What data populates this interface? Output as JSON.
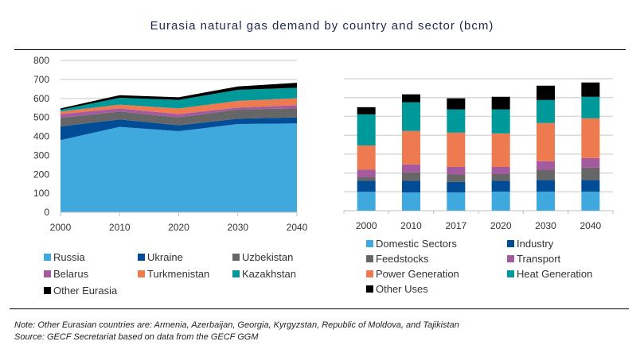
{
  "title": "Eurasia natural gas demand by country and sector (bcm)",
  "chart_data": [
    {
      "type": "area",
      "stacked": true,
      "x": [
        2000,
        2010,
        2020,
        2030,
        2040
      ],
      "xtick_labels": [
        "2000",
        "2010",
        "2020",
        "2030",
        "2040"
      ],
      "yticks": [
        0,
        100,
        200,
        300,
        400,
        500,
        600,
        700,
        800
      ],
      "ylim": [
        0,
        800
      ],
      "grid": true,
      "legend_position": "bottom",
      "series": [
        {
          "name": "Russia",
          "color": "#3FA9DD",
          "values": [
            380,
            450,
            427,
            465,
            468
          ]
        },
        {
          "name": "Ukraine",
          "color": "#004C97",
          "values": [
            72,
            39,
            31,
            28,
            32
          ]
        },
        {
          "name": "Uzbekistan",
          "color": "#666666",
          "values": [
            45,
            42,
            42,
            49,
            47
          ]
        },
        {
          "name": "Belarus",
          "color": "#A45A9F",
          "values": [
            20,
            16,
            17,
            10,
            17
          ]
        },
        {
          "name": "Turkmenistan",
          "color": "#EE7A50",
          "values": [
            14,
            20,
            30,
            35,
            37
          ]
        },
        {
          "name": "Kazakhstan",
          "color": "#009999",
          "values": [
            9,
            36,
            45,
            58,
            55
          ]
        },
        {
          "name": "Other Eurasia",
          "color": "#000000",
          "values": [
            7,
            14,
            14,
            18,
            26
          ]
        }
      ]
    },
    {
      "type": "bar",
      "stacked": true,
      "categories": [
        "2000",
        "2010",
        "2017",
        "2020",
        "2030",
        "2040"
      ],
      "ylim": [
        0,
        700
      ],
      "grid": true,
      "legend_position": "bottom",
      "series": [
        {
          "name": "Domestic Sectors",
          "color": "#3FA9DD",
          "values": [
            100,
            97,
            97,
            101,
            101,
            101
          ]
        },
        {
          "name": "Industry",
          "color": "#004C97",
          "values": [
            58,
            61,
            55,
            57,
            61,
            61
          ]
        },
        {
          "name": "Feedstocks",
          "color": "#666666",
          "values": [
            19,
            45,
            40,
            36,
            53,
            66
          ]
        },
        {
          "name": "Transport",
          "color": "#A45A9F",
          "values": [
            40,
            42,
            40,
            38,
            47,
            51
          ]
        },
        {
          "name": "Power Generation",
          "color": "#EE7A50",
          "values": [
            129,
            178,
            182,
            178,
            203,
            211
          ]
        },
        {
          "name": "Heat Generation",
          "color": "#009999",
          "values": [
            165,
            152,
            123,
            127,
            122,
            114
          ]
        },
        {
          "name": "Other Uses",
          "color": "#000000",
          "values": [
            38,
            42,
            59,
            67,
            76,
            76
          ]
        }
      ]
    }
  ],
  "notes": {
    "note": "Note: Other Eurasian countries are: Armenia, Azerbaijan, Georgia, Kyrgyzstan, Republic of Moldova, and Tajikistan",
    "source": "Source: GECF Secretariat based on data from the GECF GGM"
  }
}
